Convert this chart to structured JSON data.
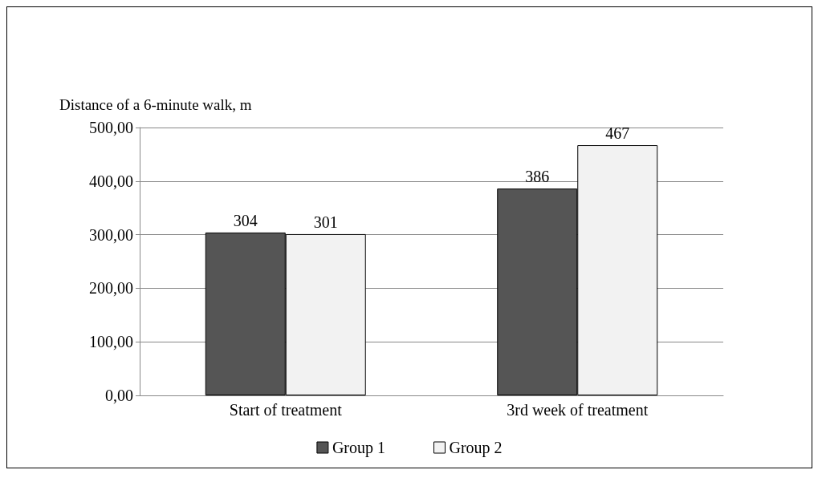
{
  "chart_data": {
    "type": "bar",
    "ylabel": "Distance of a 6-minute walk, m",
    "categories": [
      "Start of treatment",
      "3rd week of treatment"
    ],
    "series": [
      {
        "name": "Group 1",
        "color": "#555555",
        "values": [
          304,
          386
        ]
      },
      {
        "name": "Group 2",
        "color": "#f2f2f2",
        "values": [
          301,
          467
        ]
      }
    ],
    "ylim": [
      0,
      500
    ],
    "yticks": [
      {
        "value": 0,
        "label": "0,00"
      },
      {
        "value": 100,
        "label": "100,00"
      },
      {
        "value": 200,
        "label": "200,00"
      },
      {
        "value": 300,
        "label": "300,00"
      },
      {
        "value": 400,
        "label": "400,00"
      },
      {
        "value": 500,
        "label": "500,00"
      }
    ],
    "data_labels": true,
    "grid": "y",
    "legend": "bottom"
  }
}
